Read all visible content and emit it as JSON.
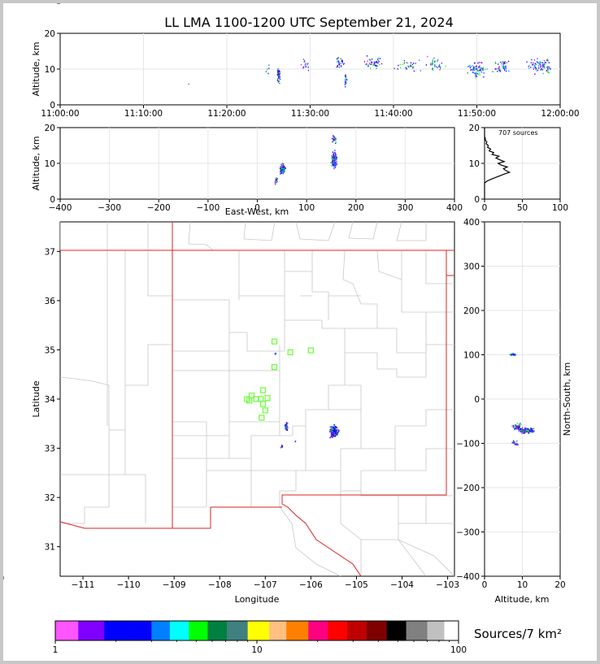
{
  "title": "LL LMA 1100-1200 UTC September 21, 2024",
  "source_count_label": "707 sources",
  "colorbar_label": "Sources/7 km²",
  "chart_data": [
    {
      "panel": "altitude-vs-time",
      "type": "scatter",
      "ylabel": "Altitude, km",
      "ylim": [
        0,
        20
      ],
      "yticks": [
        "0",
        "10",
        "20"
      ],
      "xticks": [
        "11:00:00",
        "11:10:00",
        "11:20:00",
        "11:30:00",
        "11:40:00",
        "11:50:00",
        "12:00:00"
      ],
      "xlim_minutes": [
        0,
        60
      ],
      "grid": true,
      "clusters": [
        {
          "t": 26.2,
          "alt": 8.5,
          "dt": 0.3,
          "dalt": 2.5,
          "n": 45
        },
        {
          "t": 33.5,
          "alt": 12,
          "dt": 0.8,
          "dalt": 2,
          "n": 30
        },
        {
          "t": 34.2,
          "alt": 7,
          "dt": 0.2,
          "dalt": 3,
          "n": 25
        },
        {
          "t": 37.5,
          "alt": 12,
          "dt": 1.5,
          "dalt": 2.5,
          "n": 45
        },
        {
          "t": 41.5,
          "alt": 11,
          "dt": 1.8,
          "dalt": 2,
          "n": 30
        },
        {
          "t": 45,
          "alt": 11.5,
          "dt": 1.5,
          "dalt": 2.5,
          "n": 35
        },
        {
          "t": 50,
          "alt": 10,
          "dt": 1.5,
          "dalt": 3,
          "n": 70
        },
        {
          "t": 53,
          "alt": 11,
          "dt": 1.5,
          "dalt": 2.5,
          "n": 45
        },
        {
          "t": 57.5,
          "alt": 11,
          "dt": 2,
          "dalt": 3,
          "n": 90
        },
        {
          "t": 29.5,
          "alt": 11.5,
          "dt": 1,
          "dalt": 3,
          "n": 15
        },
        {
          "t": 24.8,
          "alt": 10,
          "dt": 0.3,
          "dalt": 2,
          "n": 6
        },
        {
          "t": 15.4,
          "alt": 6,
          "dt": 0.1,
          "dalt": 0.3,
          "n": 1
        }
      ]
    },
    {
      "panel": "altitude-vs-east-west",
      "type": "scatter",
      "xlabel": "East-West, km",
      "ylabel": "Altitude, km",
      "xlim": [
        -400,
        400
      ],
      "ylim": [
        0,
        20
      ],
      "xticks": [
        "−400",
        "−300",
        "−200",
        "−100",
        "0",
        "100",
        "200",
        "300",
        "400"
      ],
      "yticks": [
        "0",
        "10",
        "20"
      ],
      "grid": true,
      "clusters": [
        {
          "x": 50,
          "alt": 8.5,
          "dx": 8,
          "dalt": 1.8,
          "n": 110
        },
        {
          "x": 155,
          "alt": 11,
          "dx": 7,
          "dalt": 3,
          "n": 210
        },
        {
          "x": 155,
          "alt": 17,
          "dx": 6,
          "dalt": 1.5,
          "n": 30
        },
        {
          "x": 37,
          "alt": 5.5,
          "dx": 4,
          "dalt": 1.5,
          "n": 20
        }
      ]
    },
    {
      "panel": "altitude-histogram",
      "type": "line",
      "xlim": [
        0,
        100
      ],
      "ylim": [
        0,
        20
      ],
      "xticks": [
        "0",
        "50",
        "100"
      ],
      "yticks": [
        "0",
        "10",
        "20"
      ],
      "grid": true,
      "profile": [
        [
          0,
          0
        ],
        [
          0,
          4.5
        ],
        [
          3,
          5
        ],
        [
          8,
          5.5
        ],
        [
          14,
          6
        ],
        [
          20,
          6.5
        ],
        [
          26,
          7
        ],
        [
          33,
          7.5
        ],
        [
          28,
          8
        ],
        [
          25,
          8.5
        ],
        [
          30,
          9
        ],
        [
          22,
          9.5
        ],
        [
          18,
          10
        ],
        [
          26,
          10.5
        ],
        [
          20,
          11
        ],
        [
          15,
          11.5
        ],
        [
          19,
          12
        ],
        [
          10,
          12.5
        ],
        [
          12,
          13
        ],
        [
          6,
          13.5
        ],
        [
          8,
          14
        ],
        [
          4,
          14.5
        ],
        [
          5,
          15
        ],
        [
          2,
          15.5
        ],
        [
          3,
          16
        ],
        [
          1,
          16.5
        ],
        [
          1,
          17
        ],
        [
          0,
          17.5
        ],
        [
          0,
          20
        ]
      ]
    },
    {
      "panel": "plan-view",
      "type": "scatter",
      "xlabel": "Longitude",
      "ylabel": "Latitude",
      "xlim": [
        -111.5,
        -102.85
      ],
      "ylim": [
        30.4,
        37.6
      ],
      "xticks": [
        "−111",
        "−110",
        "−109",
        "−108",
        "−107",
        "−106",
        "−105",
        "−104",
        "−103"
      ],
      "yticks": [
        "31",
        "32",
        "33",
        "34",
        "35",
        "36",
        "37"
      ],
      "stations": [
        [
          -106.8,
          35.17
        ],
        [
          -106.45,
          34.95
        ],
        [
          -106.0,
          34.99
        ],
        [
          -106.8,
          34.65
        ],
        [
          -107.05,
          34.18
        ],
        [
          -107.3,
          34.07
        ],
        [
          -107.4,
          34.0
        ],
        [
          -107.35,
          33.97
        ],
        [
          -107.2,
          34.0
        ],
        [
          -107.1,
          34.0
        ],
        [
          -106.95,
          34.02
        ],
        [
          -107.05,
          33.9
        ],
        [
          -107.0,
          33.77
        ],
        [
          -107.08,
          33.62
        ]
      ],
      "clusters": [
        {
          "lon": -105.5,
          "lat": 33.35,
          "dlon": 0.12,
          "dlat": 0.15,
          "n": 220
        },
        {
          "lon": -106.55,
          "lat": 33.45,
          "dlon": 0.04,
          "dlat": 0.1,
          "n": 60
        },
        {
          "lon": -106.65,
          "lat": 33.05,
          "dlon": 0.03,
          "dlat": 0.04,
          "n": 10
        },
        {
          "lon": -106.8,
          "lat": 34.93,
          "dlon": 0.03,
          "dlat": 0.02,
          "n": 8
        },
        {
          "lon": -106.35,
          "lat": 33.15,
          "dlon": 0.02,
          "dlat": 0.02,
          "n": 3
        }
      ]
    },
    {
      "panel": "north-south-vs-altitude",
      "type": "scatter",
      "xlabel": "Altitude, km",
      "ylabel": "North-South, km",
      "xlim": [
        0,
        20
      ],
      "ylim": [
        -400,
        400
      ],
      "xticks": [
        "0",
        "10",
        "20"
      ],
      "yticks": [
        "−400",
        "−300",
        "−200",
        "−100",
        "0",
        "100",
        "200",
        "300",
        "400"
      ],
      "grid": true,
      "clusters": [
        {
          "alt": 11,
          "ns": -70,
          "dalt": 2.5,
          "dns": 8,
          "n": 220
        },
        {
          "alt": 8.5,
          "ns": -62,
          "dalt": 1.5,
          "dns": 10,
          "n": 60
        },
        {
          "alt": 7.5,
          "ns": 102,
          "dalt": 1.5,
          "dns": 3,
          "n": 20
        },
        {
          "alt": 8,
          "ns": -100,
          "dalt": 1.2,
          "dns": 10,
          "n": 20
        }
      ]
    },
    {
      "panel": "colorbar",
      "type": "heatmap",
      "scale": "log",
      "range": [
        1,
        100
      ],
      "ticks": [
        "1",
        "10",
        "100"
      ],
      "colors": [
        "#ff55ff",
        "#8000ff",
        "#0000ff",
        "#0080ff",
        "#00ffff",
        "#00ff00",
        "#008040",
        "#408080",
        "#ffff00",
        "#ffc080",
        "#ff8000",
        "#ff0080",
        "#ff0000",
        "#c00000",
        "#800000",
        "#000000",
        "#808080",
        "#c0c0c0",
        "#ffffff"
      ],
      "boundaries": [
        1,
        1.3,
        1.75,
        3,
        3.7,
        4.6,
        5.7,
        7.1,
        9,
        11.5,
        14,
        18,
        22.5,
        28,
        35,
        44,
        55,
        70,
        85,
        100
      ]
    }
  ]
}
